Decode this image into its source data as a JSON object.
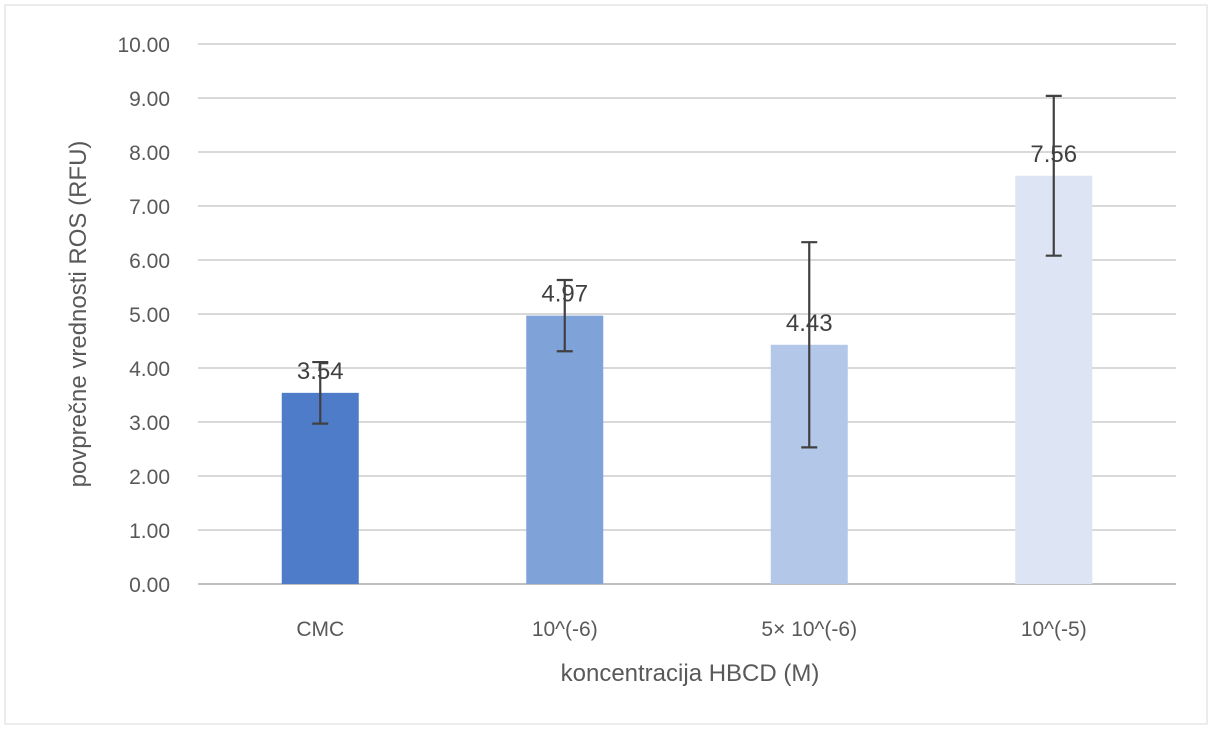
{
  "chart_data": {
    "type": "bar",
    "title": "",
    "xlabel": "koncentracija HBCD (M)",
    "ylabel": "povprečne vrednosti ROS (RFU)",
    "ylim": [
      0,
      10
    ],
    "ytick_step": 1,
    "ytick_labels": [
      "0.00",
      "1.00",
      "2.00",
      "3.00",
      "4.00",
      "5.00",
      "6.00",
      "7.00",
      "8.00",
      "9.00",
      "10.00"
    ],
    "categories": [
      "CMC",
      "10^(-6)",
      "5× 10^(-6)",
      "10^(-5)"
    ],
    "values": [
      3.54,
      4.97,
      4.43,
      7.56
    ],
    "value_labels": [
      "3.54",
      "4.97",
      "4.43",
      "7.56"
    ],
    "error_low": [
      2.97,
      4.31,
      2.53,
      6.08
    ],
    "error_high": [
      4.11,
      5.63,
      6.33,
      9.04
    ],
    "bar_colors": [
      "#4f7cc9",
      "#7fa2d9",
      "#b3c7e8",
      "#dde5f4"
    ],
    "grid": true,
    "legend": "none"
  }
}
